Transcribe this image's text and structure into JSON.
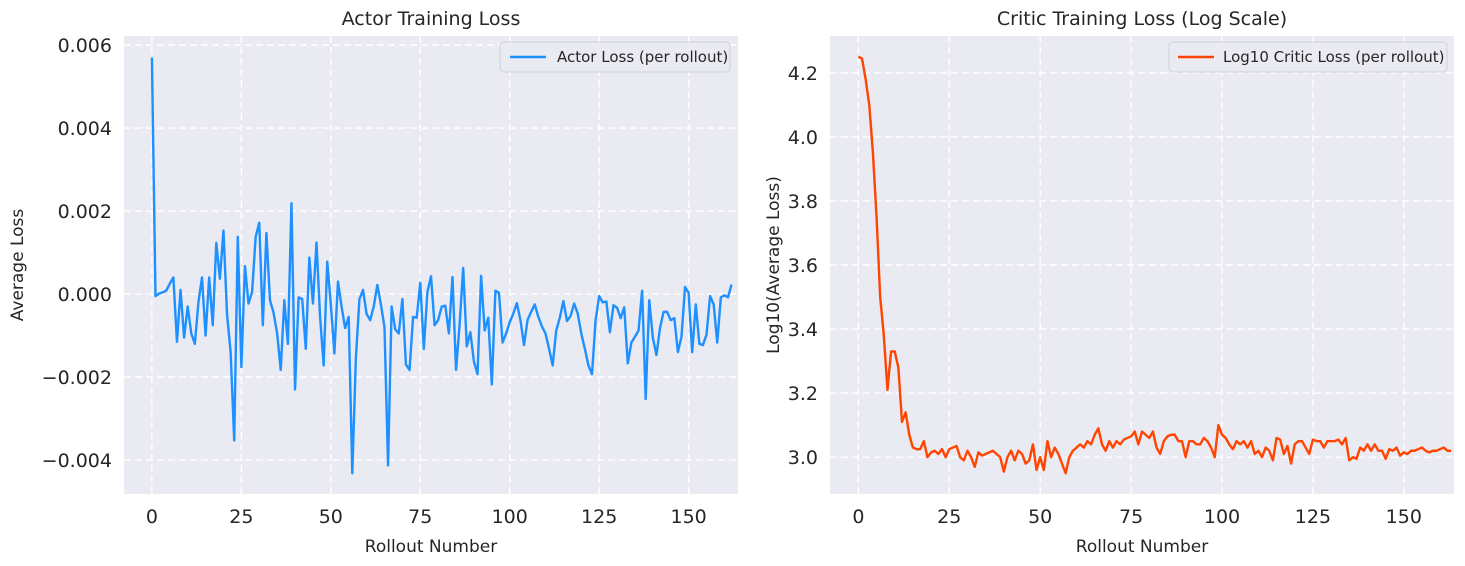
{
  "chart_data": [
    {
      "type": "line",
      "title": "Actor Training Loss",
      "xlabel": "Rollout Number",
      "ylabel": "Average Loss",
      "xlim": [
        -7.8,
        163.8
      ],
      "ylim": [
        -0.00482,
        0.00622
      ],
      "xticks": [
        0,
        25,
        50,
        75,
        100,
        125,
        150
      ],
      "xtick_labels": [
        "0",
        "25",
        "50",
        "75",
        "100",
        "125",
        "150"
      ],
      "yticks": [
        -0.004,
        -0.002,
        0.0,
        0.002,
        0.004,
        0.006
      ],
      "ytick_labels": [
        "−0.004",
        "−0.002",
        "0.000",
        "0.002",
        "0.004",
        "0.006"
      ],
      "grid": true,
      "legend": "top-right",
      "color": "#1E90FF",
      "series": [
        {
          "name": "Actor Loss (per rollout)",
          "values": [
            0.0057,
            -5e-05,
            1e-05,
            4e-05,
            8e-05,
            0.00025,
            0.0004,
            -0.00115,
            0.0001,
            -0.00105,
            -0.0003,
            -0.00095,
            -0.0012,
            -0.0002,
            0.0004,
            -0.001,
            0.0004,
            -0.00075,
            0.00123,
            0.00037,
            0.00153,
            -0.0005,
            -0.0014,
            -0.00353,
            0.00138,
            -0.00176,
            0.00067,
            -0.00023,
            5e-05,
            0.00138,
            0.00172,
            -0.00075,
            0.00147,
            -0.00015,
            -0.00045,
            -0.00095,
            -0.00183,
            -0.00015,
            -0.0012,
            0.00219,
            -0.0023,
            -8e-05,
            -0.00012,
            -0.00132,
            0.00088,
            -0.00023,
            0.00124,
            -0.00055,
            -0.00172,
            0.00078,
            -0.00025,
            -0.00143,
            0.0003,
            -0.0003,
            -0.00082,
            -0.00055,
            -0.00432,
            -0.00155,
            -0.00012,
            0.0001,
            -0.00048,
            -0.00063,
            -0.0003,
            0.00022,
            -0.00025,
            -0.0008,
            -0.00413,
            -0.0003,
            -0.00085,
            -0.00095,
            -0.00012,
            -0.0017,
            -0.00183,
            -0.00055,
            -0.00057,
            0.00027,
            -0.00132,
            5e-05,
            0.00043,
            -0.00075,
            -0.00063,
            -0.0003,
            -0.00028,
            -0.00095,
            0.00041,
            -0.00183,
            -0.00073,
            0.00063,
            -0.00126,
            -0.00092,
            -0.00163,
            -0.00193,
            0.00044,
            -0.00088,
            -0.00057,
            -0.00218,
            8e-05,
            3e-05,
            -0.00117,
            -0.00095,
            -0.00068,
            -0.00047,
            -0.00022,
            -0.00063,
            -0.00123,
            -0.00062,
            -0.00043,
            -0.00025,
            -0.00055,
            -0.00078,
            -0.00095,
            -0.00132,
            -0.00172,
            -0.00088,
            -0.00057,
            -0.00017,
            -0.00065,
            -0.00053,
            -0.00023,
            -0.00047,
            -0.00095,
            -0.00132,
            -0.00172,
            -0.00193,
            -0.00063,
            -5e-05,
            -0.0002,
            -0.00018,
            -0.00092,
            -0.00027,
            -0.00033,
            -0.00058,
            -0.00032,
            -0.00167,
            -0.00117,
            -0.00103,
            -0.00088,
            8e-05,
            -0.00253,
            -0.00015,
            -0.00105,
            -0.00147,
            -0.00082,
            -0.00043,
            -0.00043,
            -0.00063,
            -0.00058,
            -0.0014,
            -0.00103,
            0.00017,
            3e-05,
            -0.0014,
            -0.00025,
            -0.0012,
            -0.00123,
            -0.00098,
            -5e-05,
            -0.00025,
            -0.00117,
            -8e-05,
            -3e-05,
            -8e-05,
            0.00023
          ]
        }
      ]
    },
    {
      "type": "line",
      "title": "Critic Training Loss (Log Scale)",
      "xlabel": "Rollout Number",
      "ylabel": "Log10(Average Loss)",
      "xlim": [
        -7.8,
        163.8
      ],
      "ylim": [
        2.885,
        4.315
      ],
      "xticks": [
        0,
        25,
        50,
        75,
        100,
        125,
        150
      ],
      "xtick_labels": [
        "0",
        "25",
        "50",
        "75",
        "100",
        "125",
        "150"
      ],
      "yticks": [
        3.0,
        3.2,
        3.4,
        3.6,
        3.8,
        4.0,
        4.2
      ],
      "ytick_labels": [
        "3.0",
        "3.2",
        "3.4",
        "3.6",
        "3.8",
        "4.0",
        "4.2"
      ],
      "grid": true,
      "legend": "top-right",
      "color": "#FF4500",
      "series": [
        {
          "name": "Log10 Critic Loss (per rollout)",
          "values": [
            4.25,
            4.245,
            4.18,
            4.1,
            3.95,
            3.75,
            3.5,
            3.38,
            3.21,
            3.33,
            3.33,
            3.28,
            3.11,
            3.14,
            3.07,
            3.03,
            3.025,
            3.025,
            3.05,
            3.0,
            3.015,
            3.02,
            3.01,
            3.025,
            3.0,
            3.025,
            3.03,
            3.035,
            3.0,
            2.99,
            3.02,
            3.0,
            2.97,
            3.015,
            3.005,
            3.01,
            3.015,
            3.02,
            3.01,
            3.0,
            2.955,
            3.0,
            3.02,
            2.99,
            3.02,
            3.01,
            2.98,
            2.99,
            3.04,
            2.96,
            3.0,
            2.96,
            3.05,
            3.0,
            3.03,
            3.01,
            2.98,
            2.95,
            3.0,
            3.02,
            3.03,
            3.04,
            3.03,
            3.05,
            3.04,
            3.07,
            3.09,
            3.04,
            3.02,
            3.05,
            3.03,
            3.05,
            3.04,
            3.055,
            3.06,
            3.065,
            3.08,
            3.04,
            3.08,
            3.07,
            3.06,
            3.08,
            3.03,
            3.01,
            3.05,
            3.065,
            3.07,
            3.07,
            3.05,
            3.05,
            3.0,
            3.05,
            3.05,
            3.04,
            3.04,
            3.06,
            3.05,
            3.03,
            3.0,
            3.1,
            3.07,
            3.06,
            3.04,
            3.025,
            3.05,
            3.04,
            3.05,
            3.03,
            3.05,
            3.01,
            3.02,
            3.0,
            3.03,
            3.02,
            2.99,
            3.06,
            3.055,
            3.01,
            3.035,
            2.98,
            3.04,
            3.05,
            3.05,
            3.03,
            3.01,
            3.055,
            3.05,
            3.05,
            3.03,
            3.05,
            3.05,
            3.05,
            3.055,
            3.04,
            3.06,
            2.99,
            3.0,
            2.995,
            3.03,
            3.02,
            3.04,
            3.02,
            3.04,
            3.02,
            3.02,
            2.995,
            3.025,
            3.02,
            3.03,
            3.005,
            3.015,
            3.01,
            3.02,
            3.02,
            3.025,
            3.03,
            3.02,
            3.015,
            3.02,
            3.02,
            3.025,
            3.03,
            3.02,
            3.02
          ]
        }
      ]
    }
  ]
}
